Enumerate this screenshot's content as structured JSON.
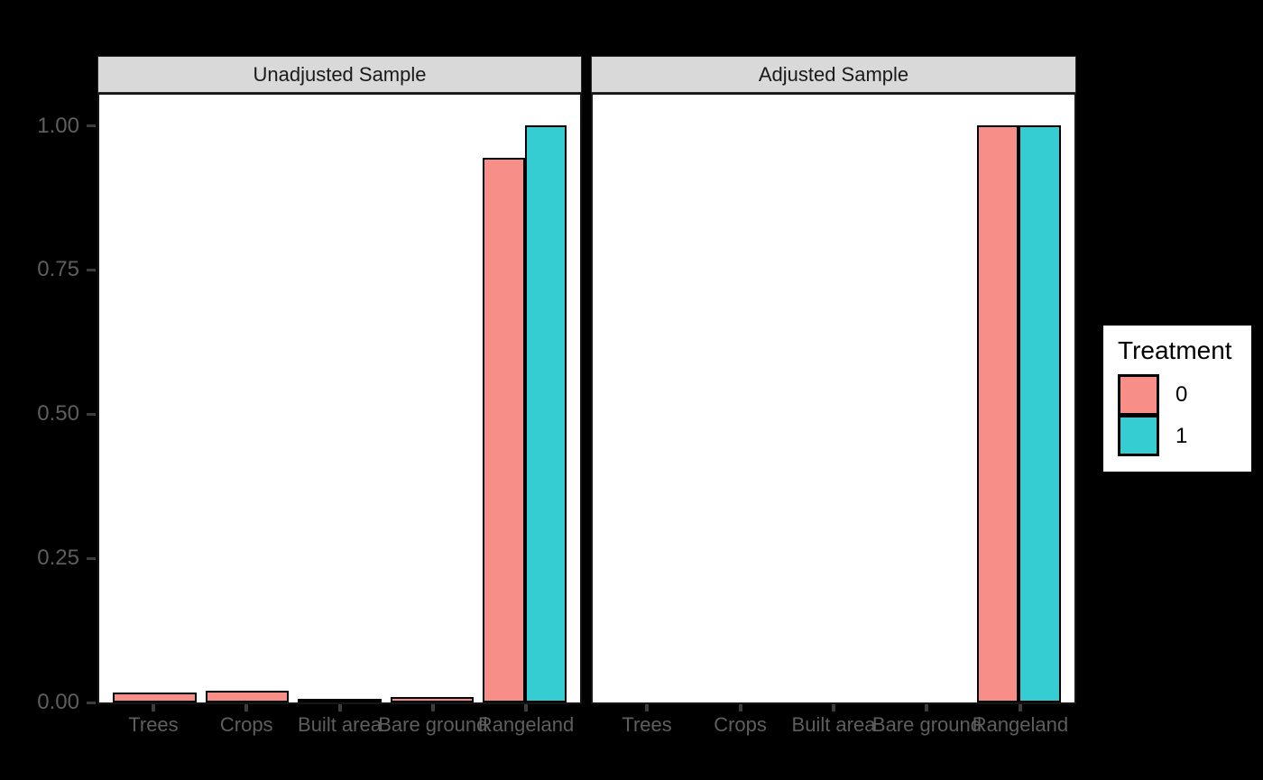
{
  "chart_data": {
    "type": "bar",
    "description": "Faceted covariate balance bar plot, proportions by land-cover category, dodged by treatment group",
    "categories": [
      "Trees",
      "Crops",
      "Built area",
      "Bare ground",
      "Rangeland"
    ],
    "facets": [
      {
        "title": "Unadjusted Sample",
        "series": [
          {
            "name": "0",
            "values": [
              0.017,
              0.02,
              0.002,
              0.01,
              0.945
            ]
          },
          {
            "name": "1",
            "values": [
              null,
              null,
              null,
              null,
              1.0
            ]
          }
        ]
      },
      {
        "title": "Adjusted Sample",
        "series": [
          {
            "name": "0",
            "values": [
              null,
              null,
              null,
              null,
              1.0
            ]
          },
          {
            "name": "1",
            "values": [
              null,
              null,
              null,
              null,
              1.0
            ]
          }
        ]
      }
    ],
    "y_axis": {
      "range": [
        0,
        1
      ],
      "ticks": [
        {
          "label": "0.00",
          "value": 0
        },
        {
          "label": "0.25",
          "value": 0.25
        },
        {
          "label": "0.50",
          "value": 0.5
        },
        {
          "label": "0.75",
          "value": 0.75
        },
        {
          "label": "1.00",
          "value": 1.0
        }
      ]
    },
    "legend": {
      "title": "Treatment",
      "entries": [
        {
          "label": "0",
          "color": "#F88E88"
        },
        {
          "label": "1",
          "color": "#35CDD2"
        }
      ]
    },
    "grid": "off",
    "legend_position": "right",
    "colors": {
      "background": "#000000",
      "panel_background": "#FFFFFF",
      "strip_background": "#D9D9D9",
      "bar_outline": "#000000",
      "axis_text": "#5E5E5E",
      "tick_mark": "#3D3D3D"
    }
  }
}
